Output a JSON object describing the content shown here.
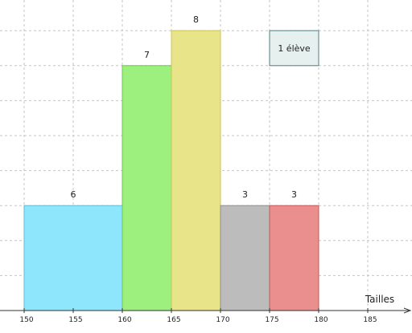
{
  "chart_data": {
    "type": "bar",
    "chart_kind": "histogram",
    "title": "",
    "xlabel": "Tailles",
    "ylabel": "",
    "x_ticks": [
      150,
      155,
      160,
      165,
      170,
      175,
      180,
      185
    ],
    "xlim": [
      148,
      190
    ],
    "ylim": [
      0,
      8.4
    ],
    "grid": true,
    "legend": {
      "text": "1 élève",
      "placement": "top-right",
      "fill": "#e6f0ee",
      "stroke": "#4f7f7f"
    },
    "bars": [
      {
        "x_start": 150,
        "x_end": 160,
        "height": 3,
        "label": "6",
        "fill": "#8ee6fc",
        "stroke": "#5fbfd4"
      },
      {
        "x_start": 160,
        "x_end": 165,
        "height": 7,
        "label": "7",
        "fill": "#9ef07e",
        "stroke": "#6cc84a"
      },
      {
        "x_start": 165,
        "x_end": 170,
        "height": 8,
        "label": "8",
        "fill": "#e8e48a",
        "stroke": "#c9c455"
      },
      {
        "x_start": 170,
        "x_end": 175,
        "height": 3,
        "label": "3",
        "fill": "#bcbcbc",
        "stroke": "#8f8f8f"
      },
      {
        "x_start": 175,
        "x_end": 180,
        "height": 3,
        "label": "3",
        "fill": "#ea8e8e",
        "stroke": "#c25a5a"
      }
    ]
  }
}
